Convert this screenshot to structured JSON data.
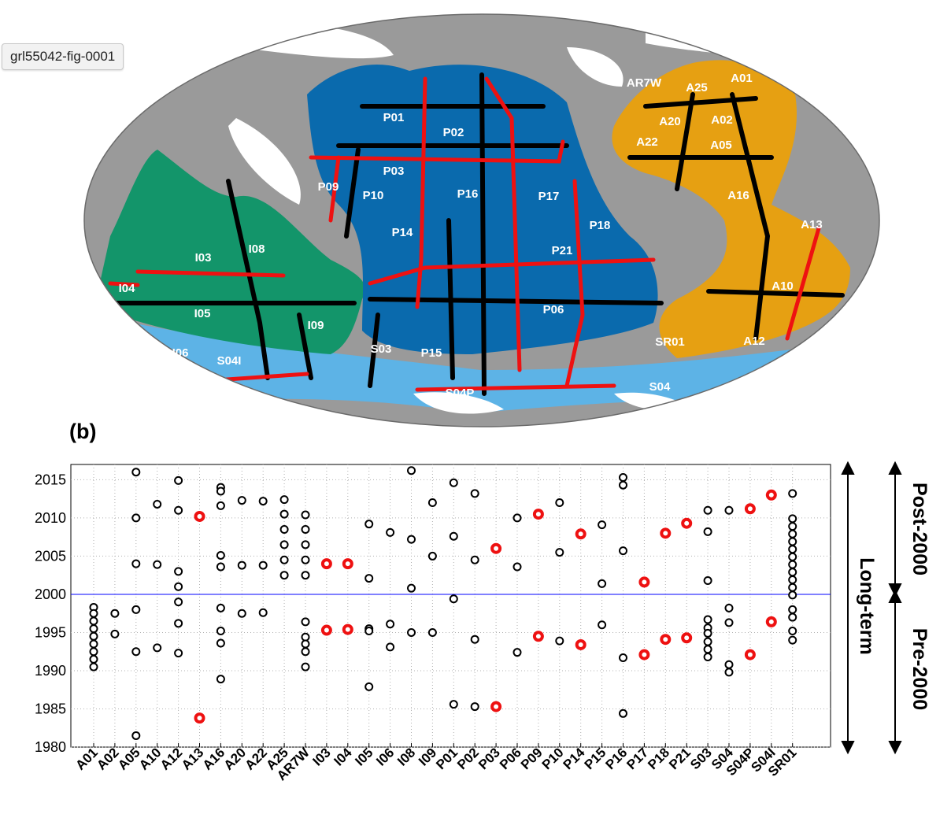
{
  "figure_tag": "grl55042-fig-0001",
  "panel_label": "(b)",
  "colors": {
    "ocean_atlantic": "#e6a012",
    "ocean_pacific": "#0a6aad",
    "ocean_indian": "#13956a",
    "ocean_southern": "#5db3e6",
    "land": "#9a9a9a",
    "ice": "#ffffff",
    "repeat_section": "#000000",
    "highlighted_section": "#ee1111",
    "divider_line": "#0000ff"
  },
  "map_labels": [
    "AR7W",
    "A01",
    "A25",
    "A20",
    "A02",
    "A22",
    "A05",
    "A16",
    "A13",
    "A10",
    "A12",
    "SR01",
    "S04",
    "P01",
    "P02",
    "P03",
    "P09",
    "P10",
    "P16",
    "P17",
    "P18",
    "P14",
    "P21",
    "P06",
    "P15",
    "S03",
    "S04P",
    "I03",
    "I08",
    "I04",
    "I05",
    "I09",
    "I06",
    "S04I"
  ],
  "right_annotations": {
    "long_term": "Long-term",
    "post_2000": "Post-2000",
    "pre_2000": "Pre-2000"
  },
  "chart_data": {
    "type": "scatter",
    "categories": [
      "A01",
      "A02",
      "A05",
      "A10",
      "A12",
      "A13",
      "A16",
      "A20",
      "A22",
      "A25",
      "AR7W",
      "I03",
      "I04",
      "I05",
      "I06",
      "I08",
      "I09",
      "P01",
      "P02",
      "P03",
      "P06",
      "P09",
      "P10",
      "P14",
      "P15",
      "P16",
      "P17",
      "P18",
      "P21",
      "S03",
      "S04",
      "S04P",
      "S04I",
      "SR01"
    ],
    "yticks": [
      "1980",
      "1985",
      "1990",
      "1995",
      "2000",
      "2005",
      "2010",
      "2015"
    ],
    "ylim": [
      1980,
      2017
    ],
    "divider_year": 2000,
    "grid": true,
    "series": [
      {
        "marker_color": "black",
        "points": [
          {
            "x": "A01",
            "y": 1998.3
          },
          {
            "x": "A01",
            "y": 1997.5
          },
          {
            "x": "A01",
            "y": 1996.5
          },
          {
            "x": "A01",
            "y": 1995.5
          },
          {
            "x": "A01",
            "y": 1994.5
          },
          {
            "x": "A01",
            "y": 1993.5
          },
          {
            "x": "A01",
            "y": 1992.5
          },
          {
            "x": "A01",
            "y": 1991.5
          },
          {
            "x": "A01",
            "y": 1990.5
          },
          {
            "x": "A02",
            "y": 1997.5
          },
          {
            "x": "A02",
            "y": 1994.8
          },
          {
            "x": "A05",
            "y": 2016
          },
          {
            "x": "A05",
            "y": 2010
          },
          {
            "x": "A05",
            "y": 2004
          },
          {
            "x": "A05",
            "y": 1998
          },
          {
            "x": "A05",
            "y": 1992.5
          },
          {
            "x": "A05",
            "y": 1981.5
          },
          {
            "x": "A10",
            "y": 2011.8
          },
          {
            "x": "A10",
            "y": 2003.9
          },
          {
            "x": "A10",
            "y": 1993
          },
          {
            "x": "A12",
            "y": 2014.9
          },
          {
            "x": "A12",
            "y": 2011
          },
          {
            "x": "A12",
            "y": 2003
          },
          {
            "x": "A12",
            "y": 2001
          },
          {
            "x": "A12",
            "y": 1999
          },
          {
            "x": "A12",
            "y": 1996.2
          },
          {
            "x": "A12",
            "y": 1992.3
          },
          {
            "x": "A16",
            "y": 2014
          },
          {
            "x": "A16",
            "y": 2013.5
          },
          {
            "x": "A16",
            "y": 2011.6
          },
          {
            "x": "A16",
            "y": 2005.1
          },
          {
            "x": "A16",
            "y": 2003.6
          },
          {
            "x": "A16",
            "y": 1998.2
          },
          {
            "x": "A16",
            "y": 1995.2
          },
          {
            "x": "A16",
            "y": 1993.6
          },
          {
            "x": "A16",
            "y": 1988.9
          },
          {
            "x": "A20",
            "y": 2012.3
          },
          {
            "x": "A20",
            "y": 2003.8
          },
          {
            "x": "A20",
            "y": 1997.5
          },
          {
            "x": "A22",
            "y": 2012.2
          },
          {
            "x": "A22",
            "y": 2003.8
          },
          {
            "x": "A22",
            "y": 1997.6
          },
          {
            "x": "A25",
            "y": 2012.4
          },
          {
            "x": "A25",
            "y": 2010.5
          },
          {
            "x": "A25",
            "y": 2008.5
          },
          {
            "x": "A25",
            "y": 2006.5
          },
          {
            "x": "A25",
            "y": 2004.5
          },
          {
            "x": "A25",
            "y": 2002.5
          },
          {
            "x": "AR7W",
            "y": 2010.4
          },
          {
            "x": "AR7W",
            "y": 2008.5
          },
          {
            "x": "AR7W",
            "y": 2006.5
          },
          {
            "x": "AR7W",
            "y": 2004.5
          },
          {
            "x": "AR7W",
            "y": 2002.5
          },
          {
            "x": "AR7W",
            "y": 1996.4
          },
          {
            "x": "AR7W",
            "y": 1994.4
          },
          {
            "x": "AR7W",
            "y": 1993.5
          },
          {
            "x": "AR7W",
            "y": 1992.5
          },
          {
            "x": "AR7W",
            "y": 1990.5
          },
          {
            "x": "I05",
            "y": 2009.2
          },
          {
            "x": "I05",
            "y": 2002.1
          },
          {
            "x": "I05",
            "y": 1995.5
          },
          {
            "x": "I05",
            "y": 1995.2
          },
          {
            "x": "I05",
            "y": 1987.9
          },
          {
            "x": "I06",
            "y": 2008.1
          },
          {
            "x": "I06",
            "y": 1996.1
          },
          {
            "x": "I06",
            "y": 1993.1
          },
          {
            "x": "I08",
            "y": 2016.2
          },
          {
            "x": "I08",
            "y": 2007.2
          },
          {
            "x": "I08",
            "y": 2000.8
          },
          {
            "x": "I08",
            "y": 1995
          },
          {
            "x": "I09",
            "y": 2012
          },
          {
            "x": "I09",
            "y": 2005
          },
          {
            "x": "I09",
            "y": 1995
          },
          {
            "x": "P01",
            "y": 2014.6
          },
          {
            "x": "P01",
            "y": 2007.6
          },
          {
            "x": "P01",
            "y": 1999.4
          },
          {
            "x": "P01",
            "y": 1985.6
          },
          {
            "x": "P02",
            "y": 2013.2
          },
          {
            "x": "P02",
            "y": 2004.5
          },
          {
            "x": "P02",
            "y": 1994.1
          },
          {
            "x": "P02",
            "y": 1985.3
          },
          {
            "x": "P06",
            "y": 2010
          },
          {
            "x": "P06",
            "y": 2003.6
          },
          {
            "x": "P06",
            "y": 1992.4
          },
          {
            "x": "P10",
            "y": 2012
          },
          {
            "x": "P10",
            "y": 2005.5
          },
          {
            "x": "P10",
            "y": 1993.9
          },
          {
            "x": "P15",
            "y": 2009.1
          },
          {
            "x": "P15",
            "y": 2001.4
          },
          {
            "x": "P15",
            "y": 1996
          },
          {
            "x": "P16",
            "y": 2015.3
          },
          {
            "x": "P16",
            "y": 2014.3
          },
          {
            "x": "P16",
            "y": 2005.7
          },
          {
            "x": "P16",
            "y": 1991.7
          },
          {
            "x": "P16",
            "y": 1984.4
          },
          {
            "x": "S03",
            "y": 2011
          },
          {
            "x": "S03",
            "y": 2008.2
          },
          {
            "x": "S03",
            "y": 2001.8
          },
          {
            "x": "S03",
            "y": 1996.7
          },
          {
            "x": "S03",
            "y": 1995.6
          },
          {
            "x": "S03",
            "y": 1994.9
          },
          {
            "x": "S03",
            "y": 1993.8
          },
          {
            "x": "S03",
            "y": 1992.8
          },
          {
            "x": "S03",
            "y": 1991.8
          },
          {
            "x": "S04",
            "y": 2011
          },
          {
            "x": "S04",
            "y": 1998.2
          },
          {
            "x": "S04",
            "y": 1996.3
          },
          {
            "x": "S04",
            "y": 1990.8
          },
          {
            "x": "S04",
            "y": 1989.8
          },
          {
            "x": "SR01",
            "y": 2013.2
          },
          {
            "x": "SR01",
            "y": 2009.9
          },
          {
            "x": "SR01",
            "y": 2008.9
          },
          {
            "x": "SR01",
            "y": 2007.9
          },
          {
            "x": "SR01",
            "y": 2006.9
          },
          {
            "x": "SR01",
            "y": 2005.9
          },
          {
            "x": "SR01",
            "y": 2004.9
          },
          {
            "x": "SR01",
            "y": 2003.9
          },
          {
            "x": "SR01",
            "y": 2002.9
          },
          {
            "x": "SR01",
            "y": 2001.9
          },
          {
            "x": "SR01",
            "y": 2000.9
          },
          {
            "x": "SR01",
            "y": 1999.9
          },
          {
            "x": "SR01",
            "y": 1998
          },
          {
            "x": "SR01",
            "y": 1997
          },
          {
            "x": "SR01",
            "y": 1995.2
          },
          {
            "x": "SR01",
            "y": 1994
          }
        ]
      },
      {
        "marker_color": "red",
        "points": [
          {
            "x": "A13",
            "y": 2010.2
          },
          {
            "x": "A13",
            "y": 1983.8
          },
          {
            "x": "I03",
            "y": 2004
          },
          {
            "x": "I03",
            "y": 1995.3
          },
          {
            "x": "I04",
            "y": 2004
          },
          {
            "x": "I04",
            "y": 1995.4
          },
          {
            "x": "P03",
            "y": 2006
          },
          {
            "x": "P03",
            "y": 1985.3
          },
          {
            "x": "P09",
            "y": 2010.5
          },
          {
            "x": "P09",
            "y": 1994.5
          },
          {
            "x": "P14",
            "y": 2007.9
          },
          {
            "x": "P14",
            "y": 1993.4
          },
          {
            "x": "P17",
            "y": 2001.6
          },
          {
            "x": "P17",
            "y": 1992.1
          },
          {
            "x": "P18",
            "y": 2008
          },
          {
            "x": "P18",
            "y": 1994.1
          },
          {
            "x": "P21",
            "y": 2009.3
          },
          {
            "x": "P21",
            "y": 1994.3
          },
          {
            "x": "S04P",
            "y": 2011.2
          },
          {
            "x": "S04P",
            "y": 1992.1
          },
          {
            "x": "S04I",
            "y": 2013
          },
          {
            "x": "S04I",
            "y": 1996.4
          }
        ]
      }
    ]
  }
}
